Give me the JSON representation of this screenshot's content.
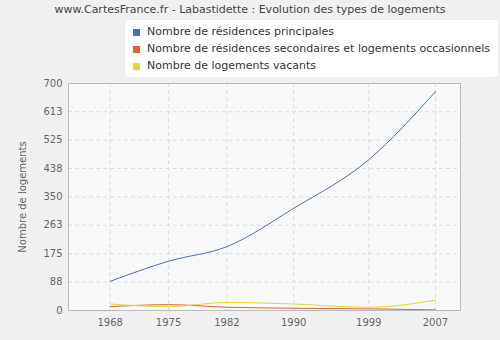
{
  "chart_data": {
    "type": "line",
    "title": "www.CartesFrance.fr - Labastidette : Evolution des types de logements",
    "y_label": "Nombre de logements",
    "x": [
      1968,
      1975,
      1982,
      1990,
      1999,
      2007
    ],
    "series": [
      {
        "name": "Nombre de résidences principales",
        "color": "#4a74a8",
        "values": [
          90,
          152,
          197,
          315,
          465,
          675
        ]
      },
      {
        "name": "Nombre de résidences secondaires et logements occasionnels",
        "color": "#e0603a",
        "values": [
          12,
          18,
          10,
          7,
          5,
          2
        ]
      },
      {
        "name": "Nombre de logements vacants",
        "color": "#e5d832",
        "values": [
          20,
          12,
          25,
          20,
          10,
          32
        ]
      }
    ],
    "xlim": [
      1963,
      2010
    ],
    "xticks": [
      1968,
      1975,
      1982,
      1990,
      1999,
      2007
    ],
    "ylim": [
      0,
      700
    ],
    "yticks": [
      0,
      88,
      175,
      263,
      350,
      438,
      525,
      613,
      700
    ],
    "grid": true,
    "legend": "top-left"
  }
}
